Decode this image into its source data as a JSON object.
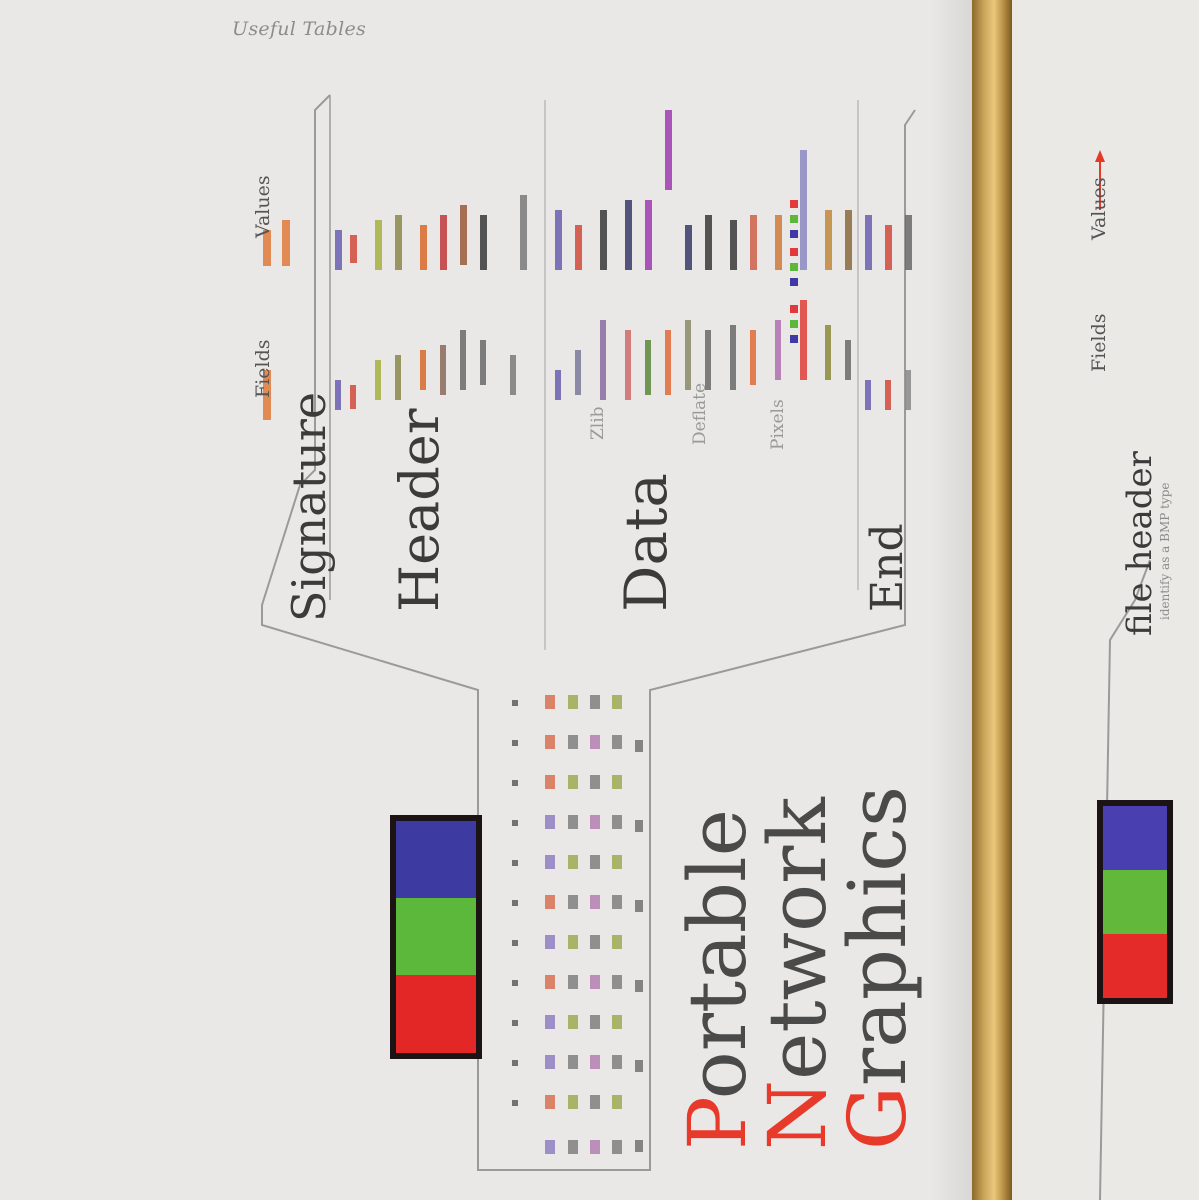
{
  "running_head": "Useful Tables",
  "diagram": {
    "sections": [
      "Signature",
      "Header",
      "Data",
      "End"
    ],
    "column_headers": [
      "Fields",
      "Values"
    ],
    "data_sublabels": [
      "Zlib",
      "Deflate",
      "Pixels"
    ],
    "title_words": [
      {
        "cap": "P",
        "rest": "ortable"
      },
      {
        "cap": "N",
        "rest": "etwork"
      },
      {
        "cap": "G",
        "rest": "raphics"
      }
    ],
    "swatch_colors": [
      "#3d3aa2",
      "#5cb83a",
      "#e32626"
    ]
  },
  "next_page": {
    "section": "file header",
    "sub_label": "identify as a BMP type",
    "column_headers": [
      "Fields",
      "Values"
    ],
    "swatch_colors": [
      "#4a3fb0",
      "#62b83a",
      "#e52a2a"
    ]
  },
  "colors": {
    "accent_red": "#e83a2a",
    "ribbon_gold": "#caa55b"
  }
}
